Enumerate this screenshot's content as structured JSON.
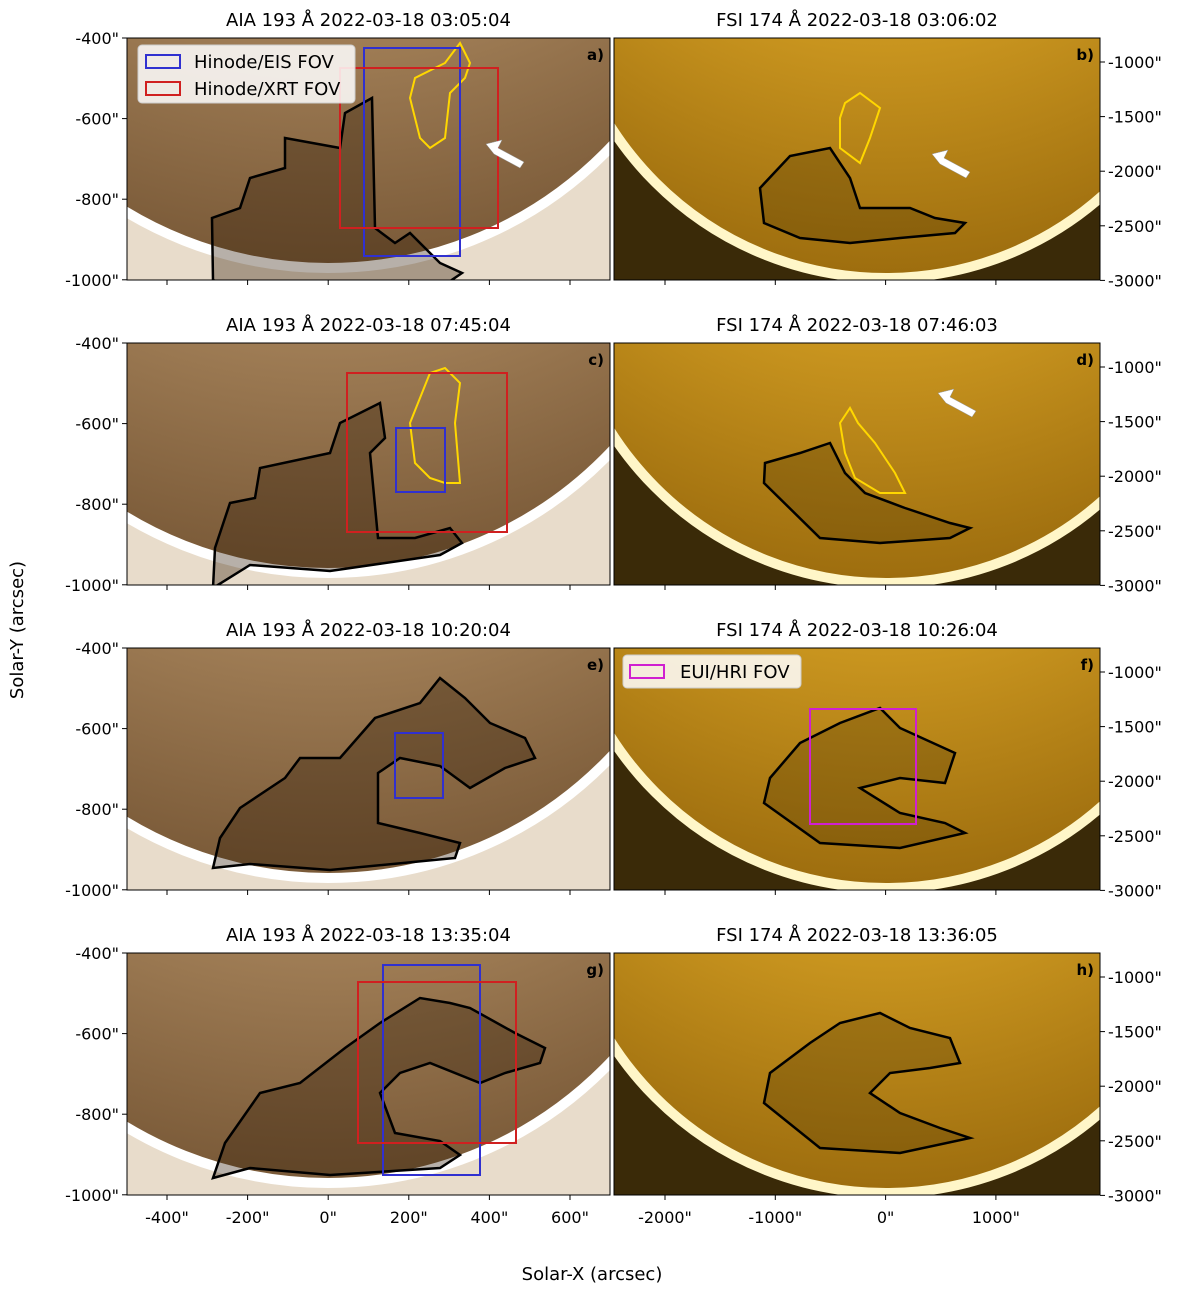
{
  "figure": {
    "y_label": "Solar-Y (arcsec)",
    "x_label": "Solar-X (arcsec)",
    "left_yticks": [
      "-400\"",
      "-600\"",
      "-800\"",
      "-1000\""
    ],
    "left_xticks": [
      "-400\"",
      "-200\"",
      "0\"",
      "200\"",
      "400\"",
      "600\""
    ],
    "right_yticks": [
      "-1000\"",
      "-1500\"",
      "-2000\"",
      "-2500\"",
      "-3000\""
    ],
    "right_xticks": [
      "-2000\"",
      "-1000\"",
      "0\"",
      "1000\""
    ],
    "panels": [
      {
        "title": "AIA 193 Å 2022-03-18 03:05:04",
        "label": "a)"
      },
      {
        "title": "FSI 174 Å 2022-03-18 03:06:02",
        "label": "b)"
      },
      {
        "title": "AIA 193 Å 2022-03-18 07:45:04",
        "label": "c)"
      },
      {
        "title": "FSI 174 Å 2022-03-18 07:46:03",
        "label": "d)"
      },
      {
        "title": "AIA 193 Å 2022-03-18 10:20:04",
        "label": "e)"
      },
      {
        "title": "FSI 174 Å 2022-03-18 10:26:04",
        "label": "f)"
      },
      {
        "title": "AIA 193 Å 2022-03-18 13:35:04",
        "label": "g)"
      },
      {
        "title": "FSI 174 Å 2022-03-18 13:36:05",
        "label": "h)"
      }
    ],
    "legends": {
      "eis": "Hinode/EIS FOV",
      "xrt": "Hinode/XRT FOV",
      "hri": "EUI/HRI FOV"
    }
  }
}
